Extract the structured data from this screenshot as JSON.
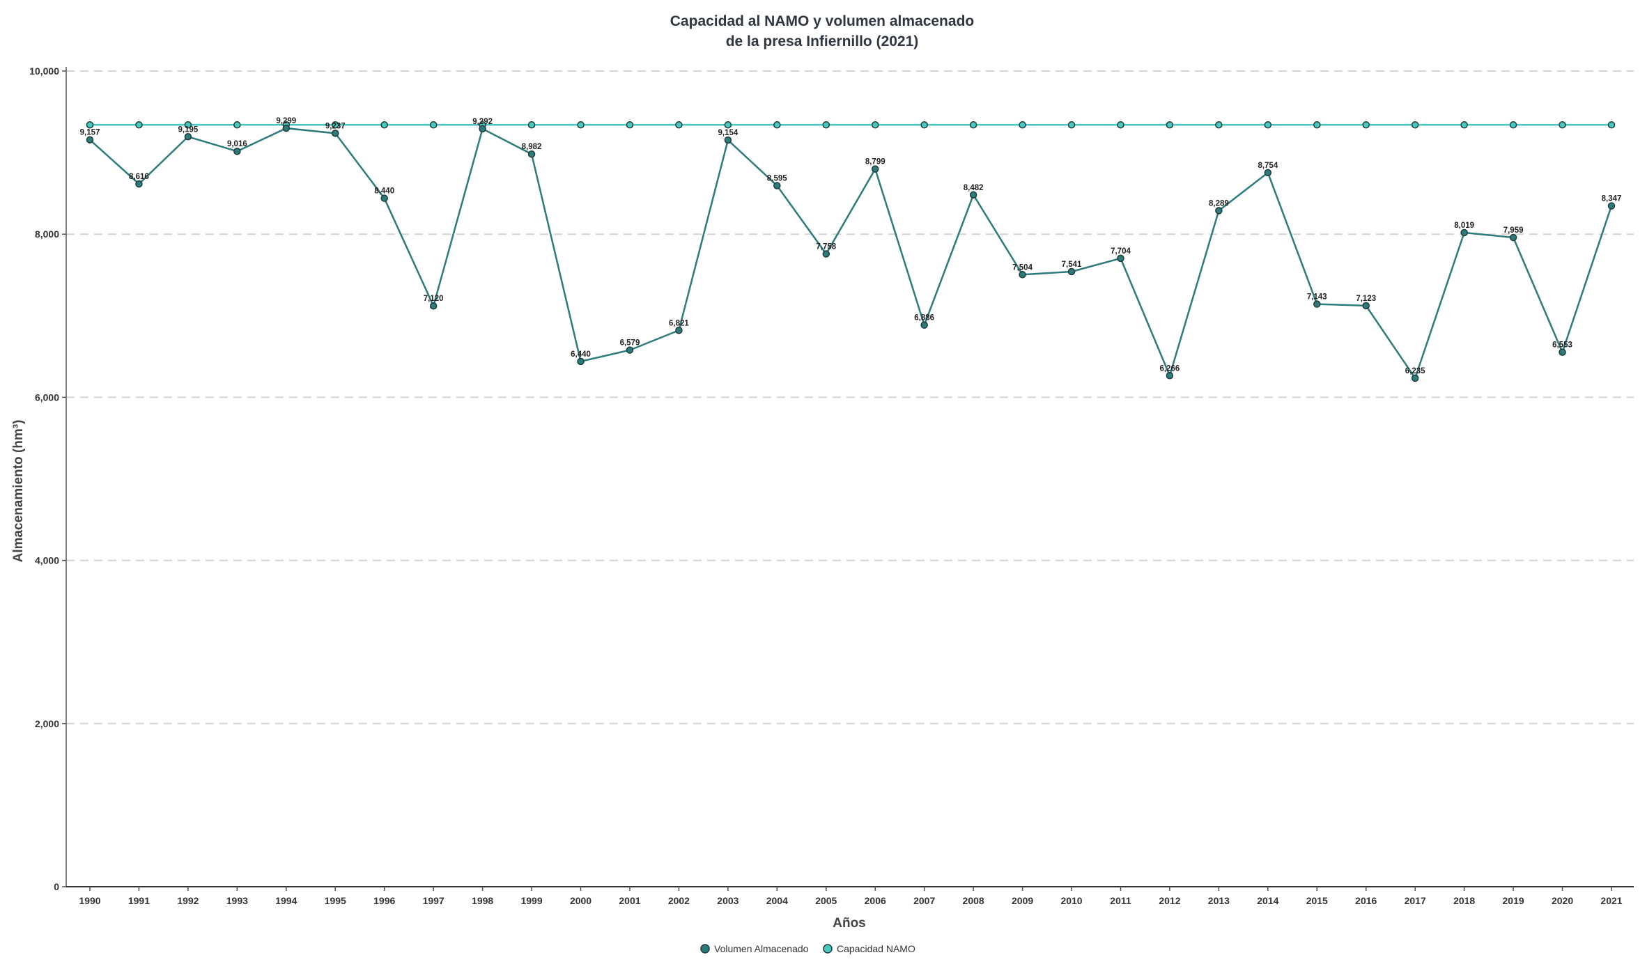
{
  "chart_data": {
    "type": "line",
    "title": [
      "Capacidad al NAMO y volumen almacenado",
      "de la presa Infiernillo (2021)"
    ],
    "xlabel": "Años",
    "ylabel": "Almacenamiento (hm³)",
    "categories": [
      "1990",
      "1991",
      "1992",
      "1993",
      "1994",
      "1995",
      "1996",
      "1997",
      "1998",
      "1999",
      "2000",
      "2001",
      "2002",
      "2003",
      "2004",
      "2005",
      "2006",
      "2007",
      "2008",
      "2009",
      "2010",
      "2011",
      "2012",
      "2013",
      "2014",
      "2015",
      "2016",
      "2017",
      "2018",
      "2019",
      "2020",
      "2021"
    ],
    "ylim": [
      0,
      10000
    ],
    "yticks": [
      0,
      2000,
      4000,
      6000,
      8000,
      10000
    ],
    "ytick_labels": [
      "0",
      "2,000",
      "4,000",
      "6,000",
      "8,000",
      "10,000"
    ],
    "grid": "horizontal dashed",
    "legend_position": "bottom-center",
    "series": [
      {
        "name": "Volumen Almacenado",
        "color": "#2e7b7b",
        "values": [
          9157,
          8616,
          9195,
          9016,
          9299,
          9237,
          8440,
          7120,
          9292,
          8982,
          6440,
          6579,
          6821,
          9154,
          8595,
          7758,
          8799,
          6886,
          8482,
          7504,
          7541,
          7704,
          6266,
          8289,
          8754,
          7143,
          7123,
          6235,
          8019,
          7959,
          6553,
          8347
        ],
        "labels": [
          "9,157",
          "8,616",
          "9,195",
          "9,016",
          "9,299",
          "9,237",
          "8,440",
          "7,120",
          "9,292",
          "8,982",
          "6,440",
          "6,579",
          "6,821",
          "9,154",
          "8,595",
          "7,758",
          "8,799",
          "6,886",
          "8,482",
          "7,504",
          "7,541",
          "7,704",
          "6,266",
          "8,289",
          "8,754",
          "7,143",
          "7,123",
          "6,235",
          "8,019",
          "7,959",
          "6,553",
          "8,347"
        ]
      },
      {
        "name": "Capacidad NAMO",
        "color": "#48c9c0",
        "values": [
          9340,
          9340,
          9340,
          9340,
          9340,
          9340,
          9340,
          9340,
          9340,
          9340,
          9340,
          9340,
          9340,
          9340,
          9340,
          9340,
          9340,
          9340,
          9340,
          9340,
          9340,
          9340,
          9340,
          9340,
          9340,
          9340,
          9340,
          9340,
          9340,
          9340,
          9340,
          9340
        ]
      }
    ]
  }
}
